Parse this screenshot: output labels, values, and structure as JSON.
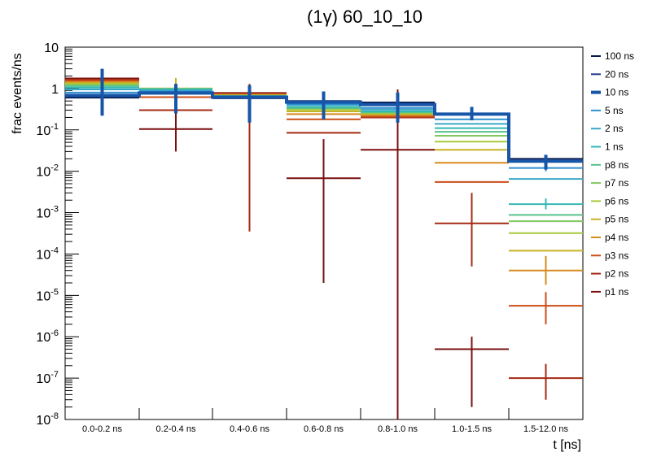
{
  "chart_data": {
    "type": "histogram",
    "title": "(1γ) 60_10_10",
    "xlabel": "t [ns]",
    "ylabel": "frac events/ns",
    "yscale": "log",
    "ylim": [
      1e-08,
      10
    ],
    "categories": [
      "0.0-0.2 ns",
      "0.2-0.4 ns",
      "0.4-0.6 ns",
      "0.6-0.8 ns",
      "0.8-1.0 ns",
      "1.0-1.5 ns",
      "1.5-12.0 ns"
    ],
    "y_tick_labels": [
      {
        "base": "10",
        "exp": "-8",
        "value": 1e-08
      },
      {
        "base": "10",
        "exp": "-7",
        "value": 1e-07
      },
      {
        "base": "10",
        "exp": "-6",
        "value": 1e-06
      },
      {
        "base": "10",
        "exp": "-5",
        "value": 1e-05
      },
      {
        "base": "10",
        "exp": "-4",
        "value": 0.0001
      },
      {
        "base": "10",
        "exp": "-3",
        "value": 0.001
      },
      {
        "base": "10",
        "exp": "-2",
        "value": 0.01
      },
      {
        "base": "10",
        "exp": "-1",
        "value": 0.1
      },
      {
        "base": "1",
        "exp": "",
        "value": 1
      },
      {
        "base": "10",
        "exp": "",
        "value": 10
      }
    ],
    "legend_position": "right",
    "series": [
      {
        "name": "100 ns",
        "color": "#0b1a4d",
        "values": [
          0.6,
          0.75,
          0.58,
          0.5,
          0.46,
          0.25,
          0.02
        ]
      },
      {
        "name": "20 ns",
        "color": "#1f3a8a",
        "values": [
          0.62,
          0.76,
          0.6,
          0.49,
          0.44,
          0.24,
          0.018
        ]
      },
      {
        "name": "10 ns",
        "color": "#1655a8",
        "thick": true,
        "values": [
          0.68,
          0.78,
          0.62,
          0.47,
          0.41,
          0.24,
          0.0175
        ],
        "errors": [
          [
            0.22,
            3.0
          ],
          [
            0.25,
            1.3
          ],
          [
            0.15,
            1.2
          ],
          [
            0.18,
            0.85
          ],
          [
            0.15,
            0.8
          ],
          [
            0.17,
            0.36
          ],
          [
            0.011,
            0.025
          ]
        ]
      },
      {
        "name": "5 ns",
        "color": "#2f8fcf",
        "values": [
          0.8,
          0.84,
          0.63,
          0.42,
          0.34,
          0.18,
          0.012
        ],
        "errors": [
          null,
          null,
          null,
          null,
          null,
          null,
          [
            0.01,
            0.016
          ]
        ]
      },
      {
        "name": "2 ns",
        "color": "#3aa7c9",
        "values": [
          0.95,
          0.9,
          0.64,
          0.4,
          0.31,
          0.14,
          0.0065
        ]
      },
      {
        "name": "1 ns",
        "color": "#35b8b4",
        "values": [
          1.05,
          0.95,
          0.65,
          0.36,
          0.28,
          0.11,
          0.0016
        ],
        "errors": [
          null,
          null,
          null,
          null,
          null,
          null,
          [
            0.0012,
            0.0022
          ]
        ]
      },
      {
        "name": "p8 ns",
        "color": "#58c18d",
        "values": [
          1.15,
          0.97,
          0.66,
          0.34,
          0.27,
          0.09,
          0.00088
        ]
      },
      {
        "name": "p7 ns",
        "color": "#82c85e",
        "values": [
          1.2,
          0.99,
          0.66,
          0.33,
          0.26,
          0.072,
          0.00062
        ]
      },
      {
        "name": "p6 ns",
        "color": "#a9c93b",
        "values": [
          1.28,
          1.0,
          0.67,
          0.31,
          0.25,
          0.052,
          0.00032
        ]
      },
      {
        "name": "p5 ns",
        "color": "#c6b320",
        "values": [
          1.35,
          1.0,
          0.68,
          0.28,
          0.24,
          0.033,
          0.00012
        ],
        "errors": [
          null,
          [
            0.5,
            1.8
          ],
          null,
          null,
          null,
          null,
          null
        ]
      },
      {
        "name": "p4 ns",
        "color": "#d88a1d",
        "values": [
          1.42,
          0.8,
          0.7,
          0.24,
          0.23,
          0.016,
          4e-05
        ],
        "errors": [
          null,
          null,
          null,
          null,
          null,
          null,
          [
            1.8e-05,
            9e-05
          ]
        ]
      },
      {
        "name": "p3 ns",
        "color": "#cc4d16",
        "values": [
          1.55,
          0.62,
          0.73,
          0.18,
          0.21,
          0.0055,
          5.6e-06
        ],
        "errors": [
          null,
          null,
          null,
          null,
          null,
          null,
          [
            2e-06,
            1.2e-05
          ]
        ]
      },
      {
        "name": "p2 ns",
        "color": "#a42a12",
        "values": [
          1.65,
          0.3,
          0.75,
          0.085,
          0.2,
          0.00055,
          1e-07
        ],
        "errors": [
          null,
          null,
          [
            0.00035,
            1.3
          ],
          null,
          null,
          [
            5e-05,
            0.003
          ],
          [
            3e-08,
            2.2e-07
          ]
        ]
      },
      {
        "name": "p1 ns",
        "color": "#7a0f0f",
        "values": [
          1.75,
          0.105,
          0.78,
          0.0068,
          0.033,
          5e-07,
          null
        ],
        "errors": [
          null,
          [
            0.03,
            0.35
          ],
          null,
          [
            2e-05,
            0.06
          ],
          [
            1e-08,
            0.95
          ],
          [
            2e-08,
            1e-06
          ],
          null
        ]
      }
    ]
  }
}
